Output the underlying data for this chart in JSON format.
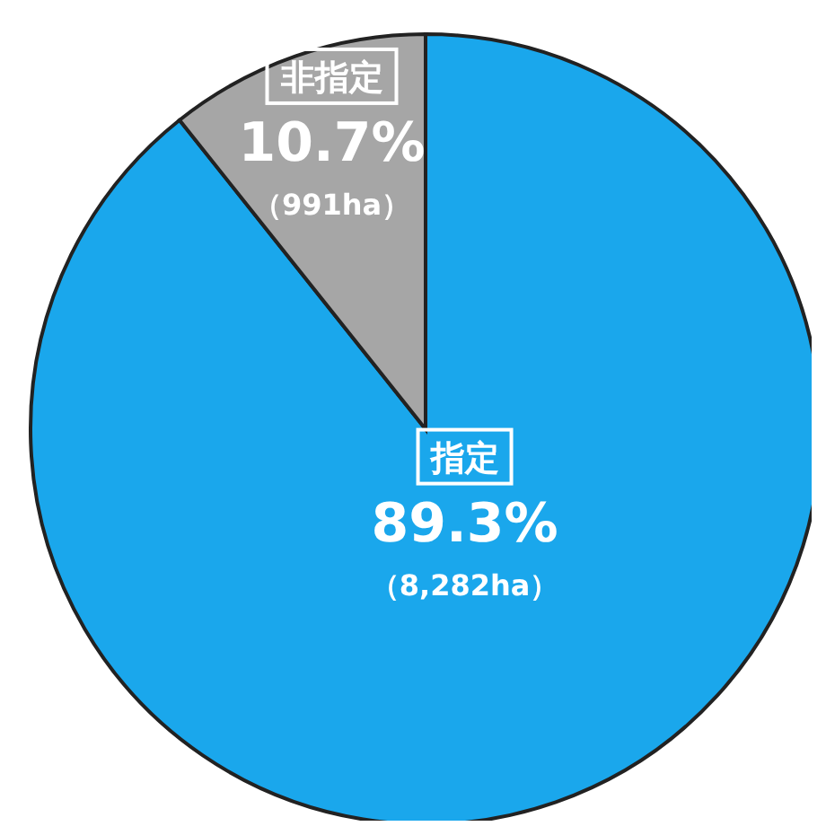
{
  "chart_data": {
    "type": "pie",
    "categories": [
      "指定",
      "非指定"
    ],
    "values": [
      89.3,
      10.7
    ],
    "colors": [
      "#1aa7ec",
      "#a6a6a6"
    ],
    "value_labels": [
      "89.3%",
      "10.7%"
    ],
    "annotations": [
      "（8,282ha）",
      "（991ha）"
    ]
  }
}
